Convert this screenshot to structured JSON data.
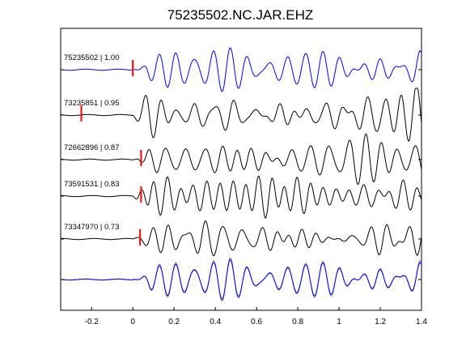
{
  "chart_data": {
    "type": "line",
    "title": "75235502.NC.JAR.EHZ",
    "xlabel": "",
    "ylabel": "",
    "xlim": [
      -0.35,
      1.4
    ],
    "xticks": [
      -0.2,
      0,
      0.2,
      0.4,
      0.6,
      0.8,
      1,
      1.2,
      1.4
    ],
    "xtick_labels": [
      "-0.2",
      "0",
      "0.2",
      "0.4",
      "0.6",
      "0.8",
      "1",
      "1.2",
      "1.4"
    ],
    "grid": false,
    "traces": [
      {
        "label": "75235502 | 1.00",
        "pick_time": 0.0,
        "color": "#0000ff"
      },
      {
        "label": "73235851 | 0.95",
        "pick_time": -0.25,
        "color": "#000000"
      },
      {
        "label": "72662896 | 0.87",
        "pick_time": 0.04,
        "color": "#000000"
      },
      {
        "label": "73591531 | 0.83",
        "pick_time": 0.04,
        "color": "#000000"
      },
      {
        "label": "73347970 | 0.73",
        "pick_time": 0.035,
        "color": "#000000"
      }
    ],
    "stack": {
      "reference_color": "#0000ff",
      "overlay_color": "#808080"
    },
    "pick_color": "#ff0000"
  }
}
